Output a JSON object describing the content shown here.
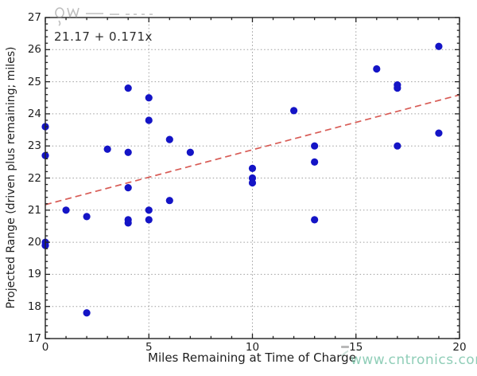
{
  "figure": {
    "watermark_text": "www.cntronics.com"
  },
  "chart_data": {
    "type": "scatter",
    "title": "",
    "xlabel": "Miles Remaining at Time of Charge",
    "ylabel": "Projected Range (driven plus remaining; miles)",
    "xlim": [
      0,
      20
    ],
    "ylim": [
      17,
      27
    ],
    "xticks": [
      0,
      5,
      10,
      15,
      20
    ],
    "yticks": [
      17,
      18,
      19,
      20,
      21,
      22,
      23,
      24,
      25,
      26,
      27
    ],
    "x_minor_step": 1,
    "y_minor_step": 0.2,
    "grid": true,
    "grid_style": "dotted",
    "legend": null,
    "points": [
      [
        0,
        23.6
      ],
      [
        0,
        22.7
      ],
      [
        0,
        20.0
      ],
      [
        0,
        19.9
      ],
      [
        1,
        21.0
      ],
      [
        2,
        20.8
      ],
      [
        2,
        17.8
      ],
      [
        3,
        22.9
      ],
      [
        4,
        24.8
      ],
      [
        4,
        22.8
      ],
      [
        4,
        21.7
      ],
      [
        4,
        20.7
      ],
      [
        4,
        20.6
      ],
      [
        5,
        24.5
      ],
      [
        5,
        23.8
      ],
      [
        5,
        21.0
      ],
      [
        5,
        20.7
      ],
      [
        6,
        23.2
      ],
      [
        6,
        21.3
      ],
      [
        7,
        22.8
      ],
      [
        10,
        22.3
      ],
      [
        10,
        22.0
      ],
      [
        10,
        21.85
      ],
      [
        12,
        24.1
      ],
      [
        13,
        23.0
      ],
      [
        13,
        22.5
      ],
      [
        13,
        20.7
      ],
      [
        16,
        25.4
      ],
      [
        17,
        24.9
      ],
      [
        17,
        24.8
      ],
      [
        17,
        23.0
      ],
      [
        19,
        26.1
      ],
      [
        19,
        23.4
      ]
    ],
    "trend_line": {
      "label": "21.17 + 0.171x",
      "intercept": 21.17,
      "slope": 0.171,
      "x_start": 0,
      "x_end": 20,
      "style": "dashed"
    },
    "colors": {
      "points": "#1414c6",
      "trend": "#d85c56",
      "grid": "#9e9e9e",
      "axis": "#222222",
      "watermark": "#7cc6ac"
    }
  }
}
